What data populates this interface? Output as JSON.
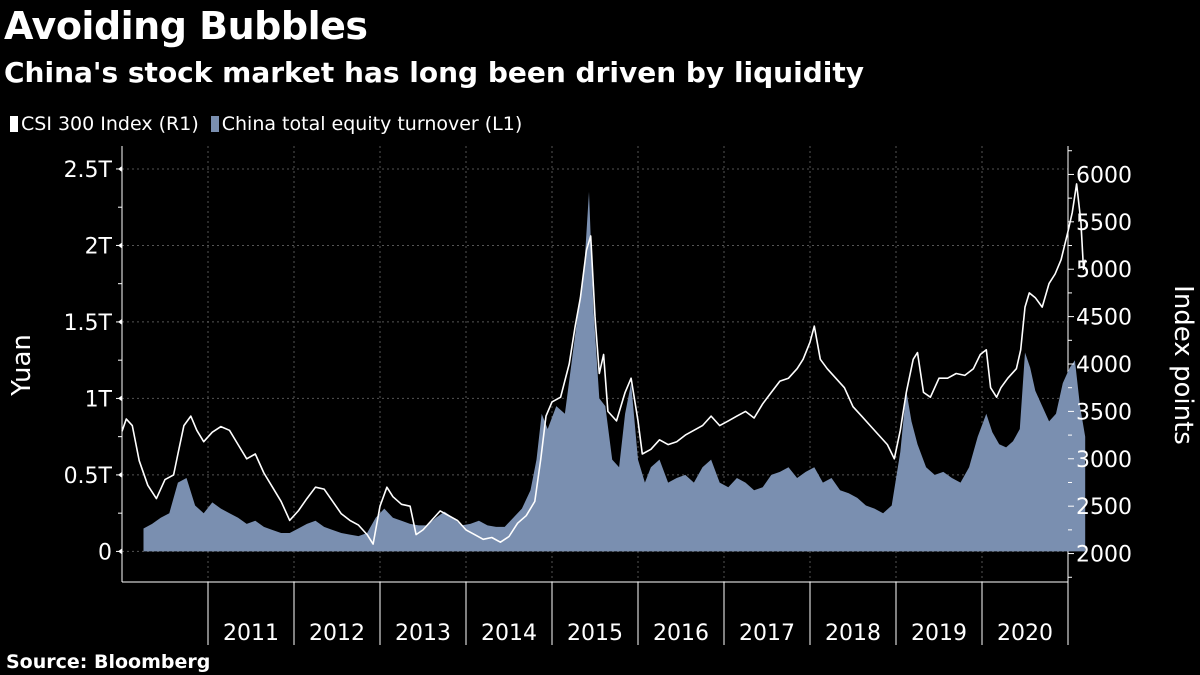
{
  "colors": {
    "background": "#000000",
    "index_line": "#ffffff",
    "turnover_area": "#7a8fb0",
    "grid": "#555555",
    "text": "#ffffff"
  },
  "chart_data": {
    "type": "area",
    "title": "Avoiding Bubbles",
    "subtitle": "China's stock market has long been driven by liquidity",
    "source": "Source: Bloomberg",
    "legend_placement": "top-left",
    "grid": true,
    "x_axis": {
      "range": [
        2010.0,
        2021.0
      ],
      "tick_labels": [
        "2011",
        "2012",
        "2013",
        "2014",
        "2015",
        "2016",
        "2017",
        "2018",
        "2019",
        "2020"
      ]
    },
    "y_left": {
      "label": "Yuan",
      "range": [
        -0.2,
        2.65
      ],
      "ticks": [
        0,
        0.5,
        1,
        1.5,
        2,
        2.5
      ],
      "tick_labels": [
        "0",
        "0.5T",
        "1T",
        "1.5T",
        "2T",
        "2.5T"
      ]
    },
    "y_right": {
      "label": "Index points",
      "range": [
        1700,
        6300
      ],
      "ticks": [
        2000,
        2500,
        3000,
        3500,
        4000,
        4500,
        5000,
        5500,
        6000
      ],
      "tick_labels": [
        "2000",
        "2500",
        "3000",
        "3500",
        "4000",
        "4500",
        "5000",
        "5500",
        "6000"
      ]
    },
    "series": [
      {
        "name": "CSI 300 Index (R1)",
        "axis": "right",
        "type": "line",
        "points": [
          [
            2010.0,
            3290
          ],
          [
            2010.05,
            3420
          ],
          [
            2010.12,
            3350
          ],
          [
            2010.2,
            2980
          ],
          [
            2010.3,
            2720
          ],
          [
            2010.4,
            2580
          ],
          [
            2010.5,
            2780
          ],
          [
            2010.6,
            2830
          ],
          [
            2010.65,
            3050
          ],
          [
            2010.72,
            3350
          ],
          [
            2010.8,
            3450
          ],
          [
            2010.87,
            3300
          ],
          [
            2010.95,
            3180
          ],
          [
            2011.05,
            3280
          ],
          [
            2011.15,
            3340
          ],
          [
            2011.25,
            3300
          ],
          [
            2011.35,
            3150
          ],
          [
            2011.45,
            3000
          ],
          [
            2011.55,
            3050
          ],
          [
            2011.65,
            2850
          ],
          [
            2011.75,
            2700
          ],
          [
            2011.85,
            2550
          ],
          [
            2011.95,
            2350
          ],
          [
            2012.05,
            2450
          ],
          [
            2012.15,
            2580
          ],
          [
            2012.25,
            2700
          ],
          [
            2012.35,
            2680
          ],
          [
            2012.45,
            2550
          ],
          [
            2012.55,
            2420
          ],
          [
            2012.65,
            2350
          ],
          [
            2012.75,
            2300
          ],
          [
            2012.85,
            2200
          ],
          [
            2012.92,
            2100
          ],
          [
            2013.0,
            2500
          ],
          [
            2013.08,
            2700
          ],
          [
            2013.15,
            2600
          ],
          [
            2013.25,
            2520
          ],
          [
            2013.35,
            2500
          ],
          [
            2013.42,
            2200
          ],
          [
            2013.5,
            2250
          ],
          [
            2013.6,
            2350
          ],
          [
            2013.7,
            2450
          ],
          [
            2013.8,
            2400
          ],
          [
            2013.9,
            2350
          ],
          [
            2014.0,
            2250
          ],
          [
            2014.1,
            2200
          ],
          [
            2014.2,
            2150
          ],
          [
            2014.3,
            2170
          ],
          [
            2014.4,
            2120
          ],
          [
            2014.5,
            2180
          ],
          [
            2014.6,
            2320
          ],
          [
            2014.7,
            2400
          ],
          [
            2014.8,
            2550
          ],
          [
            2014.87,
            3000
          ],
          [
            2014.93,
            3450
          ],
          [
            2015.0,
            3600
          ],
          [
            2015.1,
            3650
          ],
          [
            2015.2,
            4000
          ],
          [
            2015.27,
            4400
          ],
          [
            2015.33,
            4700
          ],
          [
            2015.4,
            5200
          ],
          [
            2015.45,
            5350
          ],
          [
            2015.5,
            4500
          ],
          [
            2015.55,
            3900
          ],
          [
            2015.6,
            4100
          ],
          [
            2015.65,
            3500
          ],
          [
            2015.75,
            3400
          ],
          [
            2015.85,
            3700
          ],
          [
            2015.92,
            3850
          ],
          [
            2016.0,
            3400
          ],
          [
            2016.05,
            3050
          ],
          [
            2016.15,
            3100
          ],
          [
            2016.25,
            3200
          ],
          [
            2016.35,
            3150
          ],
          [
            2016.45,
            3180
          ],
          [
            2016.55,
            3250
          ],
          [
            2016.65,
            3300
          ],
          [
            2016.75,
            3350
          ],
          [
            2016.85,
            3450
          ],
          [
            2016.95,
            3350
          ],
          [
            2017.05,
            3400
          ],
          [
            2017.15,
            3450
          ],
          [
            2017.25,
            3500
          ],
          [
            2017.35,
            3430
          ],
          [
            2017.45,
            3580
          ],
          [
            2017.55,
            3700
          ],
          [
            2017.65,
            3820
          ],
          [
            2017.75,
            3850
          ],
          [
            2017.85,
            3950
          ],
          [
            2017.92,
            4050
          ],
          [
            2018.0,
            4230
          ],
          [
            2018.05,
            4400
          ],
          [
            2018.12,
            4050
          ],
          [
            2018.2,
            3950
          ],
          [
            2018.3,
            3850
          ],
          [
            2018.4,
            3750
          ],
          [
            2018.5,
            3550
          ],
          [
            2018.6,
            3450
          ],
          [
            2018.7,
            3350
          ],
          [
            2018.8,
            3250
          ],
          [
            2018.9,
            3150
          ],
          [
            2018.98,
            3000
          ],
          [
            2019.05,
            3300
          ],
          [
            2019.12,
            3700
          ],
          [
            2019.2,
            4050
          ],
          [
            2019.25,
            4120
          ],
          [
            2019.32,
            3700
          ],
          [
            2019.4,
            3650
          ],
          [
            2019.5,
            3850
          ],
          [
            2019.6,
            3850
          ],
          [
            2019.7,
            3900
          ],
          [
            2019.8,
            3880
          ],
          [
            2019.9,
            3950
          ],
          [
            2019.98,
            4100
          ],
          [
            2020.05,
            4150
          ],
          [
            2020.1,
            3750
          ],
          [
            2020.17,
            3650
          ],
          [
            2020.22,
            3750
          ],
          [
            2020.3,
            3850
          ],
          [
            2020.4,
            3950
          ],
          [
            2020.45,
            4150
          ],
          [
            2020.5,
            4600
          ],
          [
            2020.55,
            4750
          ],
          [
            2020.62,
            4700
          ],
          [
            2020.7,
            4600
          ],
          [
            2020.78,
            4850
          ],
          [
            2020.85,
            4950
          ],
          [
            2020.92,
            5100
          ],
          [
            2021.0,
            5400
          ],
          [
            2021.05,
            5600
          ],
          [
            2021.1,
            5900
          ],
          [
            2021.15,
            5500
          ],
          [
            2021.18,
            5000
          ],
          [
            2021.2,
            5100
          ]
        ]
      },
      {
        "name": "China total equity turnover (L1)",
        "axis": "left",
        "type": "area",
        "points": [
          [
            2010.25,
            0.15
          ],
          [
            2010.35,
            0.18
          ],
          [
            2010.45,
            0.22
          ],
          [
            2010.55,
            0.25
          ],
          [
            2010.65,
            0.45
          ],
          [
            2010.75,
            0.48
          ],
          [
            2010.85,
            0.3
          ],
          [
            2010.95,
            0.25
          ],
          [
            2011.05,
            0.32
          ],
          [
            2011.15,
            0.28
          ],
          [
            2011.25,
            0.25
          ],
          [
            2011.35,
            0.22
          ],
          [
            2011.45,
            0.18
          ],
          [
            2011.55,
            0.2
          ],
          [
            2011.65,
            0.16
          ],
          [
            2011.75,
            0.14
          ],
          [
            2011.85,
            0.12
          ],
          [
            2011.95,
            0.12
          ],
          [
            2012.05,
            0.15
          ],
          [
            2012.15,
            0.18
          ],
          [
            2012.25,
            0.2
          ],
          [
            2012.35,
            0.16
          ],
          [
            2012.45,
            0.14
          ],
          [
            2012.55,
            0.12
          ],
          [
            2012.65,
            0.11
          ],
          [
            2012.75,
            0.1
          ],
          [
            2012.85,
            0.12
          ],
          [
            2012.95,
            0.22
          ],
          [
            2013.05,
            0.28
          ],
          [
            2013.15,
            0.22
          ],
          [
            2013.25,
            0.2
          ],
          [
            2013.35,
            0.18
          ],
          [
            2013.45,
            0.17
          ],
          [
            2013.55,
            0.17
          ],
          [
            2013.65,
            0.22
          ],
          [
            2013.75,
            0.26
          ],
          [
            2013.85,
            0.22
          ],
          [
            2013.95,
            0.17
          ],
          [
            2014.05,
            0.18
          ],
          [
            2014.15,
            0.2
          ],
          [
            2014.25,
            0.17
          ],
          [
            2014.35,
            0.16
          ],
          [
            2014.45,
            0.16
          ],
          [
            2014.55,
            0.22
          ],
          [
            2014.65,
            0.28
          ],
          [
            2014.75,
            0.4
          ],
          [
            2014.82,
            0.6
          ],
          [
            2014.88,
            0.9
          ],
          [
            2014.95,
            0.8
          ],
          [
            2015.05,
            0.95
          ],
          [
            2015.15,
            0.9
          ],
          [
            2015.22,
            1.2
          ],
          [
            2015.3,
            1.55
          ],
          [
            2015.38,
            1.9
          ],
          [
            2015.43,
            2.35
          ],
          [
            2015.48,
            1.6
          ],
          [
            2015.55,
            1.0
          ],
          [
            2015.62,
            0.95
          ],
          [
            2015.7,
            0.6
          ],
          [
            2015.78,
            0.55
          ],
          [
            2015.85,
            0.9
          ],
          [
            2015.92,
            1.1
          ],
          [
            2016.0,
            0.6
          ],
          [
            2016.08,
            0.45
          ],
          [
            2016.15,
            0.55
          ],
          [
            2016.25,
            0.6
          ],
          [
            2016.35,
            0.45
          ],
          [
            2016.45,
            0.48
          ],
          [
            2016.55,
            0.5
          ],
          [
            2016.65,
            0.45
          ],
          [
            2016.75,
            0.55
          ],
          [
            2016.85,
            0.6
          ],
          [
            2016.95,
            0.45
          ],
          [
            2017.05,
            0.42
          ],
          [
            2017.15,
            0.48
          ],
          [
            2017.25,
            0.45
          ],
          [
            2017.35,
            0.4
          ],
          [
            2017.45,
            0.42
          ],
          [
            2017.55,
            0.5
          ],
          [
            2017.65,
            0.52
          ],
          [
            2017.75,
            0.55
          ],
          [
            2017.85,
            0.48
          ],
          [
            2017.95,
            0.52
          ],
          [
            2018.05,
            0.55
          ],
          [
            2018.15,
            0.45
          ],
          [
            2018.25,
            0.48
          ],
          [
            2018.35,
            0.4
          ],
          [
            2018.45,
            0.38
          ],
          [
            2018.55,
            0.35
          ],
          [
            2018.65,
            0.3
          ],
          [
            2018.75,
            0.28
          ],
          [
            2018.85,
            0.25
          ],
          [
            2018.95,
            0.3
          ],
          [
            2019.05,
            0.65
          ],
          [
            2019.12,
            1.05
          ],
          [
            2019.18,
            0.85
          ],
          [
            2019.25,
            0.7
          ],
          [
            2019.35,
            0.55
          ],
          [
            2019.45,
            0.5
          ],
          [
            2019.55,
            0.52
          ],
          [
            2019.65,
            0.48
          ],
          [
            2019.75,
            0.45
          ],
          [
            2019.85,
            0.55
          ],
          [
            2019.95,
            0.75
          ],
          [
            2020.05,
            0.9
          ],
          [
            2020.12,
            0.78
          ],
          [
            2020.2,
            0.7
          ],
          [
            2020.28,
            0.68
          ],
          [
            2020.36,
            0.72
          ],
          [
            2020.44,
            0.8
          ],
          [
            2020.5,
            1.3
          ],
          [
            2020.56,
            1.2
          ],
          [
            2020.62,
            1.05
          ],
          [
            2020.7,
            0.95
          ],
          [
            2020.78,
            0.85
          ],
          [
            2020.86,
            0.9
          ],
          [
            2020.94,
            1.1
          ],
          [
            2021.02,
            1.2
          ],
          [
            2021.08,
            1.25
          ],
          [
            2021.14,
            0.95
          ],
          [
            2021.2,
            0.75
          ]
        ]
      }
    ]
  }
}
